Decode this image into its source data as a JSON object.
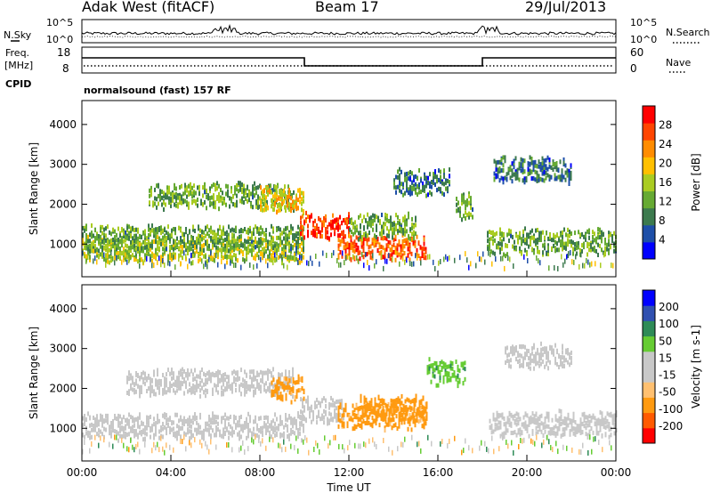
{
  "header": {
    "radar": "Adak West (fitACF)",
    "beam": "Beam 17",
    "date": "29/Jul/2013"
  },
  "strip_labels": {
    "nsky": "N.Sky",
    "nsearch": "N.Search",
    "freq_top": "Freq.",
    "freq_unit": "[MHz]",
    "nave": "Nave",
    "cpid": "CPID",
    "cpid_value": "normalsound (fast) 157 RF",
    "noise_tick_hi": "10^5",
    "noise_tick_lo": "10^0",
    "freq_tick_hi": "18",
    "freq_tick_lo": "8",
    "nave_tick_hi": "60",
    "nave_tick_lo": "0"
  },
  "colors": {
    "power": [
      "#0000ff",
      "#1e4fa8",
      "#3c7a4e",
      "#66aa33",
      "#aacc22",
      "#ffc000",
      "#ff8c00",
      "#ff4500",
      "#ff0000"
    ],
    "velocity": [
      "#ff0000",
      "#ff5a00",
      "#ff9a10",
      "#ffc070",
      "#c8c8c8",
      "#c8c8c8",
      "#66cc33",
      "#2e8b57",
      "#3050b0",
      "#0000ff"
    ]
  },
  "chart_data": [
    {
      "type": "heatmap",
      "panel": "power",
      "xlabel": "Time UT",
      "ylabel": "Slant Range [km]",
      "x_ticks": [
        "00:00",
        "04:00",
        "08:00",
        "12:00",
        "16:00",
        "20:00",
        "00:00"
      ],
      "x_range_hours": [
        0,
        24
      ],
      "y_ticks": [
        1000,
        2000,
        3000,
        4000
      ],
      "ylim": [
        180,
        4600
      ],
      "colorbar_label": "Power [dB]",
      "colorbar_ticks": [
        4,
        8,
        12,
        16,
        20,
        24,
        28
      ],
      "colorbar_range": [
        0,
        32
      ],
      "features": [
        {
          "t_start": 0.0,
          "t_end": 10.0,
          "range_km": 900,
          "value_db": 16
        },
        {
          "t_start": 0.0,
          "t_end": 10.0,
          "range_km": 1200,
          "value_db": 12
        },
        {
          "t_start": 3.0,
          "t_end": 9.5,
          "range_km": 2250,
          "value_db": 12
        },
        {
          "t_start": 9.8,
          "t_end": 12.0,
          "range_km": 1500,
          "value_db": 28
        },
        {
          "t_start": 8.0,
          "t_end": 10.0,
          "range_km": 2150,
          "value_db": 20
        },
        {
          "t_start": 11.5,
          "t_end": 15.5,
          "range_km": 950,
          "value_db": 26
        },
        {
          "t_start": 12.0,
          "t_end": 15.0,
          "range_km": 1500,
          "value_db": 12
        },
        {
          "t_start": 14.0,
          "t_end": 16.5,
          "range_km": 2600,
          "value_db": 8
        },
        {
          "t_start": 16.8,
          "t_end": 17.6,
          "range_km": 2000,
          "value_db": 12
        },
        {
          "t_start": 18.2,
          "t_end": 24.0,
          "range_km": 1100,
          "value_db": 12
        },
        {
          "t_start": 18.5,
          "t_end": 22.0,
          "range_km": 2900,
          "value_db": 8
        }
      ]
    },
    {
      "type": "heatmap",
      "panel": "velocity",
      "xlabel": "Time UT",
      "ylabel": "Slant Range [km]",
      "x_ticks": [
        "00:00",
        "04:00",
        "08:00",
        "12:00",
        "16:00",
        "20:00",
        "00:00"
      ],
      "x_range_hours": [
        0,
        24
      ],
      "y_ticks": [
        1000,
        2000,
        3000,
        4000
      ],
      "ylim": [
        180,
        4600
      ],
      "colorbar_label": "Velocity [m s-1]",
      "colorbar_ticks": [
        200,
        100,
        50,
        15,
        -15,
        -50,
        -100,
        -200
      ],
      "colorbar_range": [
        -250,
        250
      ],
      "features": [
        {
          "t_start": 0.0,
          "t_end": 10.0,
          "range_km": 1100,
          "value_ms": 0
        },
        {
          "t_start": 2.0,
          "t_end": 9.5,
          "range_km": 2200,
          "value_ms": 0
        },
        {
          "t_start": 9.8,
          "t_end": 11.8,
          "range_km": 1500,
          "value_ms": 0
        },
        {
          "t_start": 8.5,
          "t_end": 10.0,
          "range_km": 2050,
          "value_ms": -60
        },
        {
          "t_start": 11.5,
          "t_end": 15.5,
          "range_km": 1350,
          "value_ms": -60
        },
        {
          "t_start": 12.5,
          "t_end": 15.5,
          "range_km": 1550,
          "value_ms": -70
        },
        {
          "t_start": 15.5,
          "t_end": 17.2,
          "range_km": 2450,
          "value_ms": 40
        },
        {
          "t_start": 18.3,
          "t_end": 24.0,
          "range_km": 1150,
          "value_ms": 0
        },
        {
          "t_start": 19.0,
          "t_end": 22.0,
          "range_km": 2850,
          "value_ms": 0
        }
      ]
    }
  ]
}
